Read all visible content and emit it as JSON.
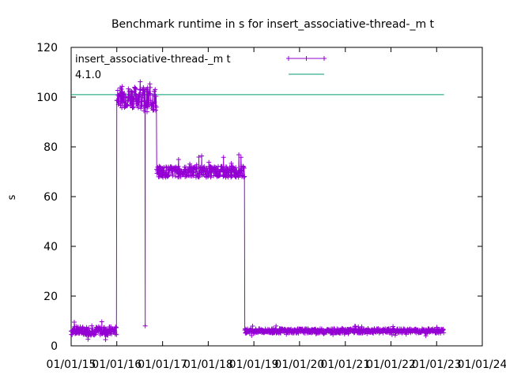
{
  "chart_data": {
    "type": "scatter",
    "title": "Benchmark runtime in s for insert_associative-thread-_m t",
    "ylabel": "s",
    "xlabel": "",
    "ylim": [
      0,
      120
    ],
    "yticks": [
      0,
      20,
      40,
      60,
      80,
      100,
      120
    ],
    "xlim": [
      "2015-01-01",
      "2024-01-01"
    ],
    "xticks": [
      "01/01/15",
      "01/01/16",
      "01/01/17",
      "01/01/18",
      "01/01/19",
      "01/01/20",
      "01/01/21",
      "01/01/22",
      "01/01/23",
      "01/01/24"
    ],
    "grid": false,
    "legend_position": "top-left",
    "series": [
      {
        "name": "insert_associative-thread-_m t",
        "color": "#9400d3",
        "style": "linespoints-plus",
        "segments": [
          {
            "from": "2015-01-01",
            "to": "2016-01-01",
            "min": 2,
            "max": 10,
            "typical": 6
          },
          {
            "from": "2016-01-01",
            "to": "2016-08-15",
            "min": 92,
            "max": 111,
            "typical": 100
          },
          {
            "point": "2016-08-15",
            "value": 8
          },
          {
            "from": "2016-08-15",
            "to": "2016-11-15",
            "min": 88,
            "max": 110,
            "typical": 99
          },
          {
            "from": "2016-11-15",
            "to": "2018-10-20",
            "min": 67,
            "max": 77,
            "typical": 70
          },
          {
            "from": "2018-10-20",
            "to": "2023-03-01",
            "min": 4,
            "max": 8,
            "typical": 6
          }
        ]
      },
      {
        "name": "4.1.0",
        "color": "#009e73",
        "style": "line",
        "value": 101,
        "from": "2015-01-01",
        "to": "2023-03-01"
      }
    ]
  }
}
